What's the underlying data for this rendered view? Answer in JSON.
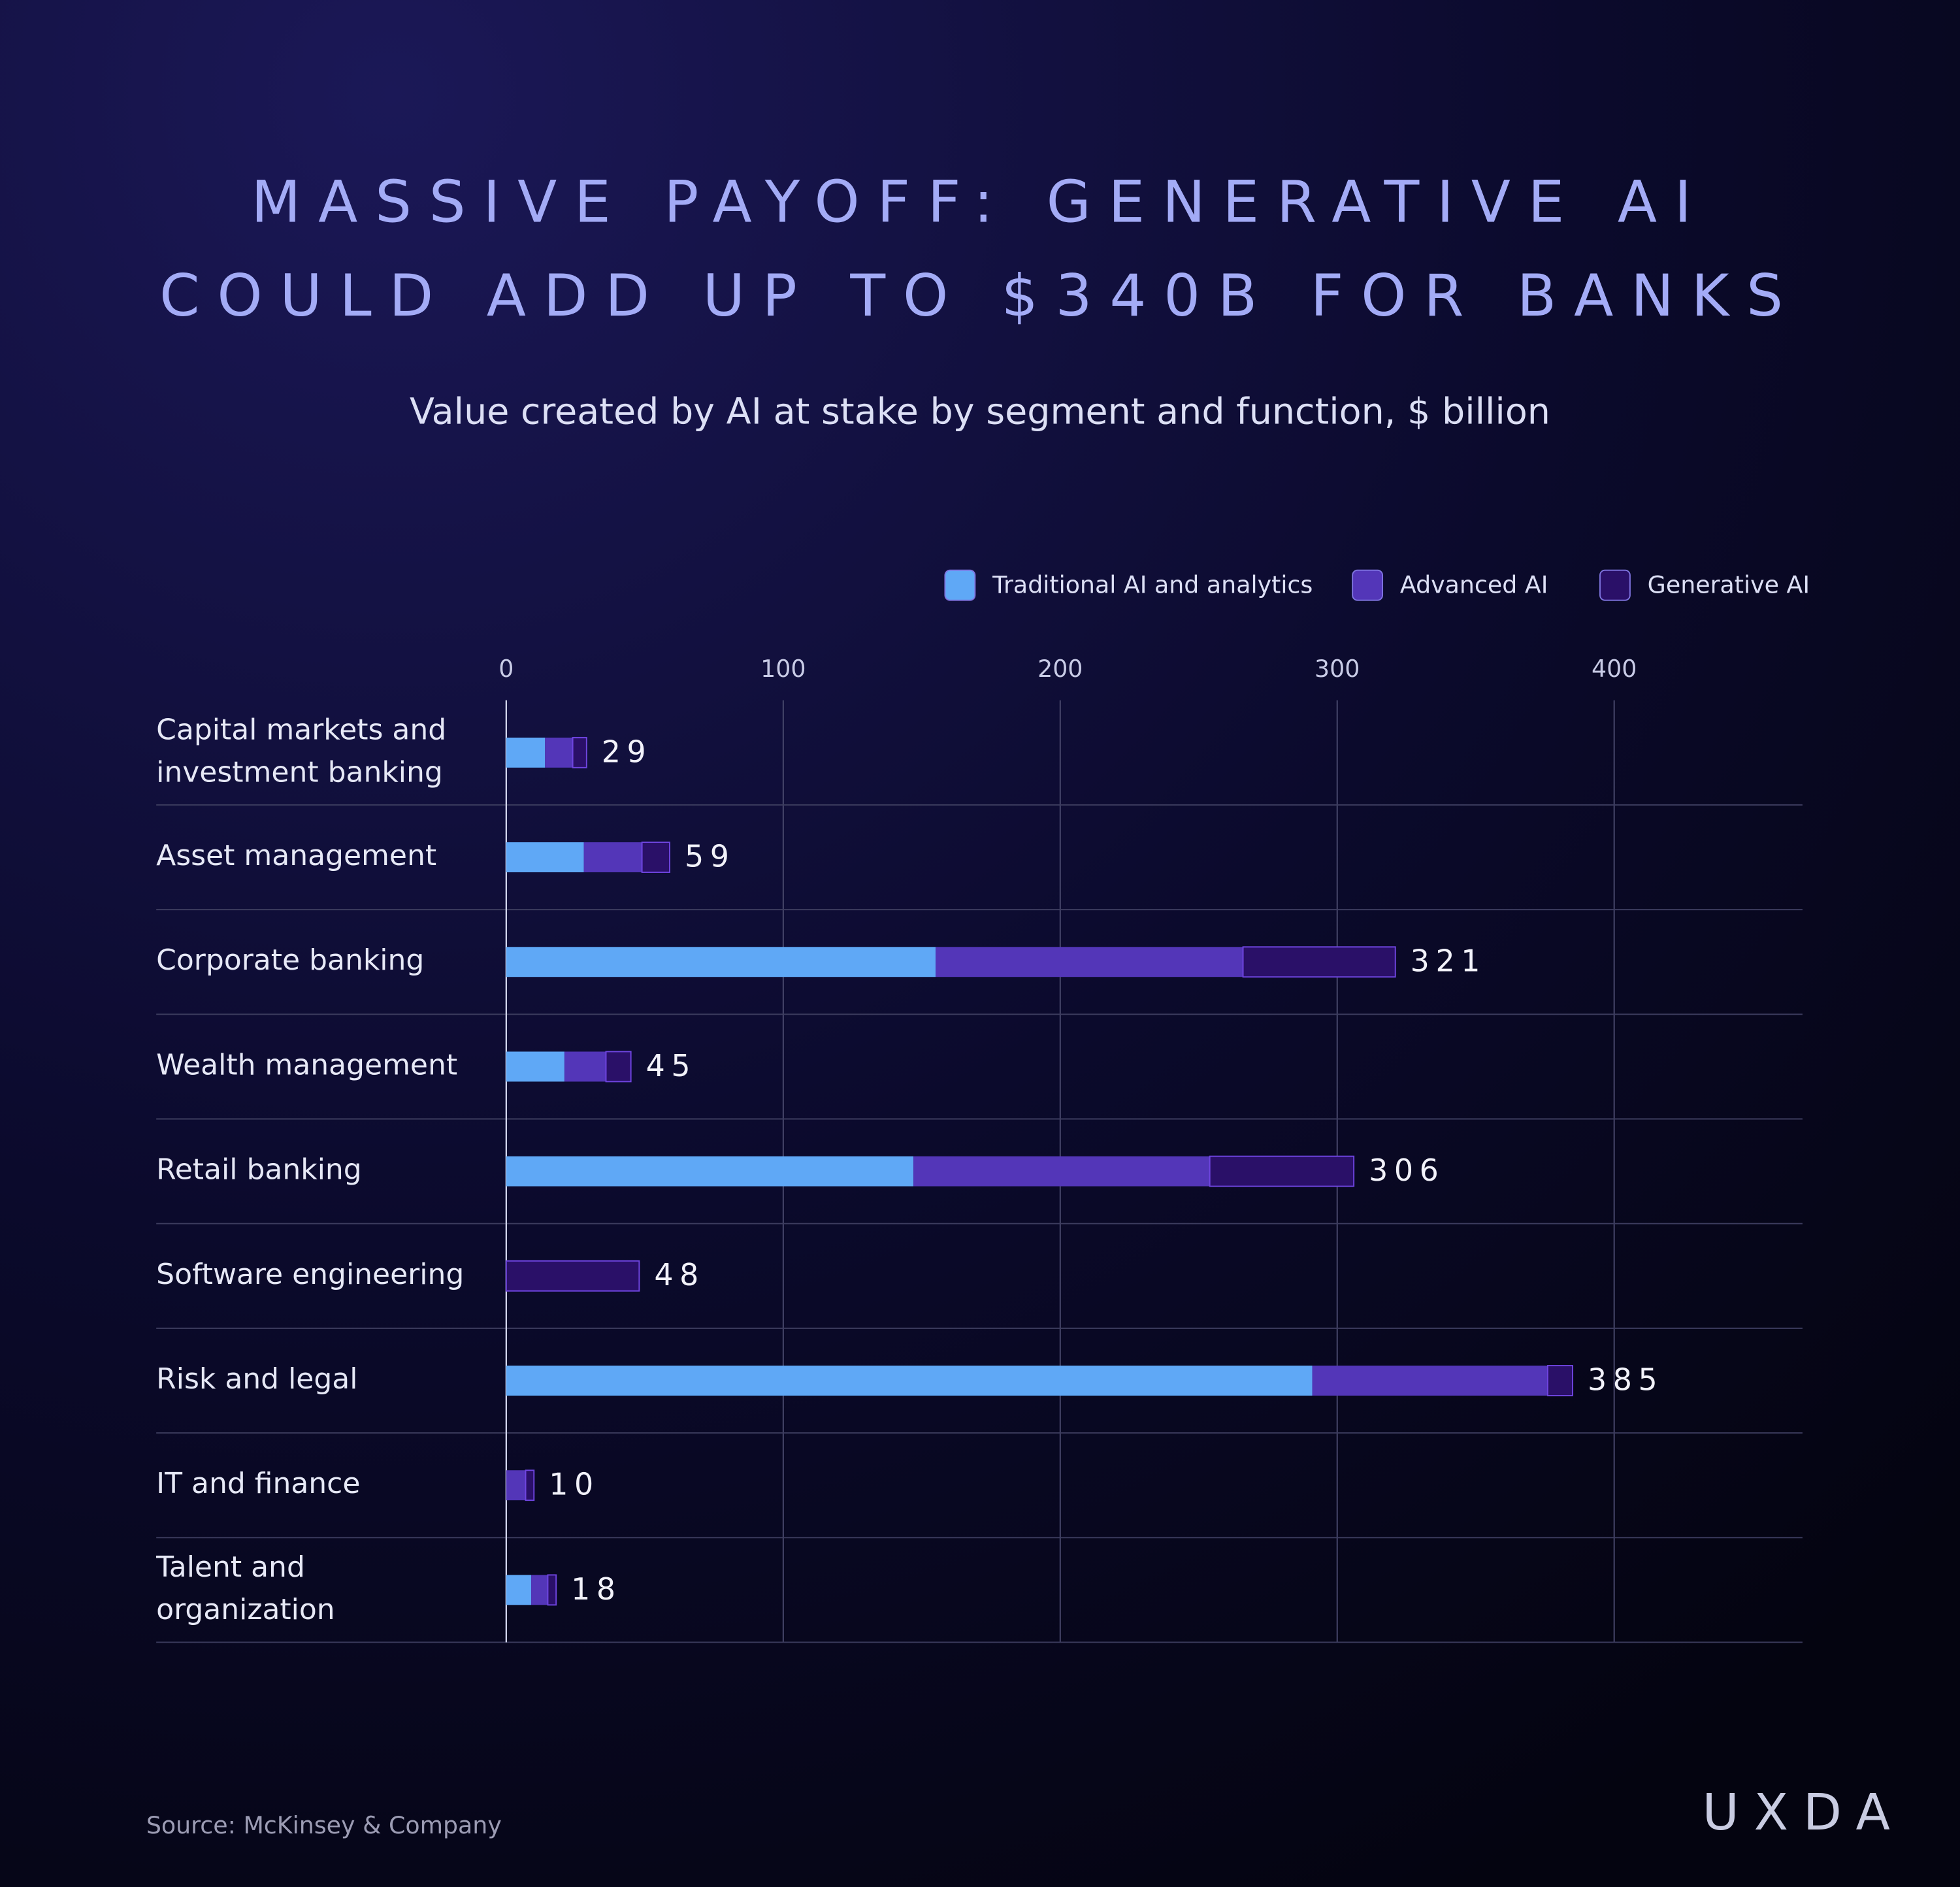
{
  "chart_data": {
    "type": "stacked-bar-horizontal",
    "title": [
      "MASSIVE PAYOFF: GENERATIVE AI",
      "COULD ADD UP TO $340B FOR BANKS"
    ],
    "subtitle": "Value created by AI at stake by segment and function, $ billion",
    "categories": [
      "Capital markets and investment banking",
      "Asset management",
      "Corporate banking",
      "Wealth management",
      "Retail banking",
      "Software engineering",
      "Risk and legal",
      "IT and finance",
      "Talent and organization"
    ],
    "series": [
      {
        "name": "Traditional AI and analytics",
        "color": "#5fa8f6",
        "values": [
          14,
          28,
          155,
          21,
          147,
          0,
          291,
          0,
          9
        ]
      },
      {
        "name": "Advanced AI",
        "color": "#5336b8",
        "values": [
          10,
          21,
          111,
          15,
          107,
          0,
          85,
          7,
          6
        ]
      },
      {
        "name": "Generative AI",
        "color": "#2a1068",
        "values": [
          5,
          10,
          55,
          9,
          52,
          48,
          9,
          3,
          3
        ]
      }
    ],
    "totals": [
      29,
      59,
      321,
      45,
      306,
      48,
      385,
      10,
      18
    ],
    "xlim": [
      0,
      468
    ],
    "xticks": [
      0,
      100,
      200,
      300,
      400
    ],
    "grid": true,
    "legend": "top-right",
    "source": "Source: McKinsey & Company",
    "brand": "UXDA"
  }
}
